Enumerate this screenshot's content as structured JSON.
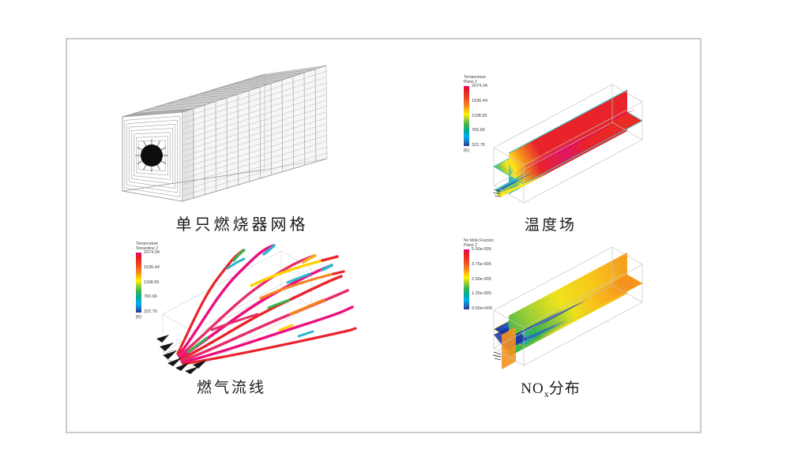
{
  "figure": {
    "panels": {
      "mesh": {
        "caption": "单只燃烧器网格"
      },
      "temperature": {
        "caption": "温度场",
        "colorbar": {
          "title1": "Temperature",
          "title2": "Plane 2",
          "ticks": [
            "2074.34",
            "1636.44",
            "1198.55",
            "760.66",
            "322.76"
          ],
          "unit": "[K]"
        }
      },
      "streamline": {
        "caption": "燃气流线",
        "colorbar": {
          "title1": "Temperature",
          "title2": "Streamline 2",
          "ticks": [
            "2074.34",
            "1636.44",
            "1198.55",
            "760.66",
            "322.76"
          ],
          "unit": "[K]"
        }
      },
      "nox": {
        "caption_main": "NO",
        "caption_sub": "x",
        "caption_rest": "分布",
        "colorbar": {
          "title1": "No Mole Fraction",
          "title2": "Plane 2",
          "ticks": [
            "5.00e-005",
            "3.75e-005",
            "2.50e-005",
            "1.25e-005",
            "0.00e+000"
          ],
          "unit": ""
        }
      }
    },
    "colormap": {
      "high": "#e6007e",
      "low": "#2e3192"
    }
  }
}
